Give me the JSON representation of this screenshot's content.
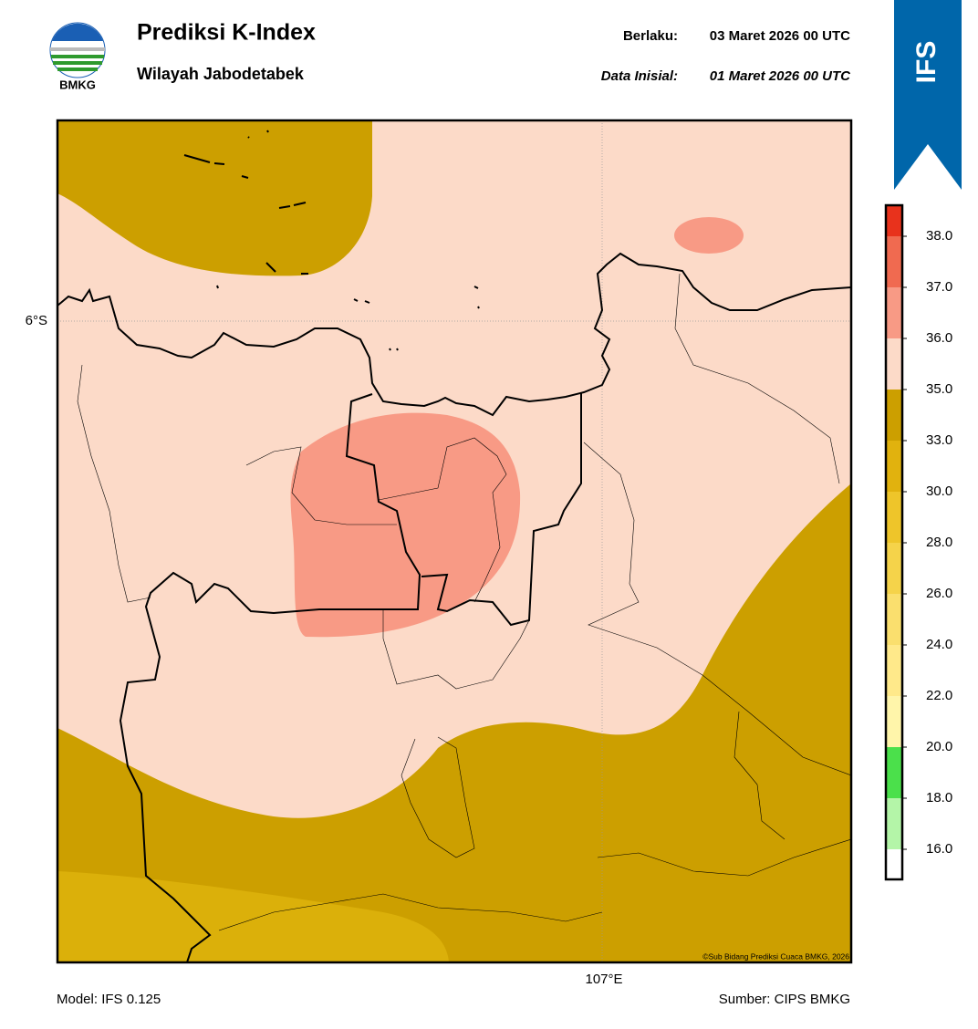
{
  "header": {
    "title": "Prediksi K-Index",
    "subtitle": "Wilayah Jabodetabek",
    "valid_label": "Berlaku:",
    "valid_time": "03 Maret 2026 00 UTC",
    "init_label": "Data Inisial:",
    "init_time": "01 Maret 2026 00 UTC",
    "logo_text": "BMKG",
    "model_badge": "IFS"
  },
  "map": {
    "lat_label": "6°S",
    "lon_label": "107°E",
    "credit": "©Sub Bidang Prediksi Cuaca BMKG, 2026"
  },
  "colorbar": {
    "ticks": [
      {
        "value": 16,
        "label": "16.0"
      },
      {
        "value": 18,
        "label": "18.0"
      },
      {
        "value": 20,
        "label": "20.0"
      },
      {
        "value": 22,
        "label": "22.0"
      },
      {
        "value": 24,
        "label": "24.0"
      },
      {
        "value": 26,
        "label": "26.0"
      },
      {
        "value": 28,
        "label": "28.0"
      },
      {
        "value": 30,
        "label": "30.0"
      },
      {
        "value": 33,
        "label": "33.0"
      },
      {
        "value": 35,
        "label": "35.0"
      },
      {
        "value": 36,
        "label": "36.0"
      },
      {
        "value": 37,
        "label": "37.0"
      },
      {
        "value": 38,
        "label": "38.0"
      }
    ],
    "colors": [
      "#ffffff",
      "#b4f5a8",
      "#4be04b",
      "#fff5aa",
      "#ffe98a",
      "#fadf6e",
      "#f5d34a",
      "#eec52a",
      "#e1b20e",
      "#cc9f00",
      "#fcdac8",
      "#f89a85",
      "#f06a50",
      "#e8321c"
    ]
  },
  "footer": {
    "model": "Model: IFS 0.125",
    "source": "Sumber: CIPS BMKG"
  }
}
